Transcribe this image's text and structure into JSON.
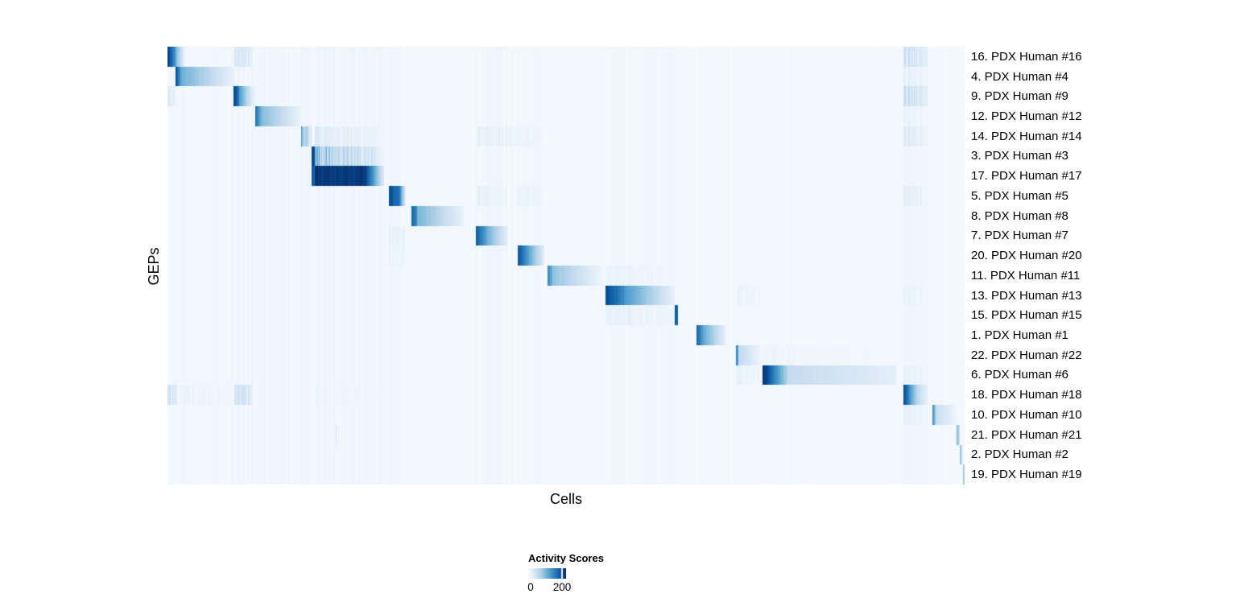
{
  "chart_data": {
    "type": "heatmap",
    "xlabel": "Cells",
    "ylabel": "GEPs",
    "colorbar": {
      "title": "Activity Scores",
      "tick_labels": [
        "0",
        "200"
      ],
      "tick_values": [
        0,
        200
      ],
      "value_range": [
        0,
        225
      ]
    },
    "colormap": {
      "name": "Blues",
      "stops": [
        "#f7fbff",
        "#deebf7",
        "#c6dbef",
        "#9ecae1",
        "#6baed6",
        "#4292c6",
        "#2171b5",
        "#08519c",
        "#08306b"
      ]
    },
    "base": 2,
    "base_noise": 5,
    "bands": [
      [
        0.0,
        0.014,
        9
      ],
      [
        0.014,
        0.084,
        10
      ],
      [
        0.084,
        0.108,
        13
      ],
      [
        0.11,
        0.168,
        10
      ],
      [
        0.168,
        0.181,
        12
      ],
      [
        0.185,
        0.272,
        12
      ],
      [
        0.278,
        0.298,
        12
      ],
      [
        0.306,
        0.372,
        8
      ],
      [
        0.387,
        0.427,
        12
      ],
      [
        0.439,
        0.473,
        10
      ],
      [
        0.477,
        0.545,
        8
      ],
      [
        0.549,
        0.636,
        10
      ],
      [
        0.664,
        0.7,
        6
      ],
      [
        0.713,
        0.743,
        8
      ],
      [
        0.746,
        0.914,
        6
      ],
      [
        0.923,
        0.954,
        13
      ],
      [
        0.96,
        0.99,
        6
      ]
    ],
    "rows": [
      {
        "label": "16. PDX Human #16",
        "segments": [
          [
            0.0,
            0.01,
            225,
            140,
            0
          ],
          [
            0.01,
            0.022,
            115,
            12,
            0
          ],
          [
            0.084,
            0.106,
            55,
            28,
            1
          ],
          [
            0.923,
            0.954,
            65,
            35,
            1
          ]
        ]
      },
      {
        "label": "4. PDX Human #4",
        "segments": [
          [
            0.01,
            0.016,
            215,
            140,
            0
          ],
          [
            0.016,
            0.084,
            120,
            16,
            0
          ],
          [
            0.923,
            0.954,
            28,
            16,
            1
          ]
        ]
      },
      {
        "label": "9. PDX Human #9",
        "segments": [
          [
            0.0,
            0.01,
            42,
            24,
            1
          ],
          [
            0.083,
            0.09,
            215,
            160,
            0
          ],
          [
            0.09,
            0.106,
            140,
            28,
            0
          ],
          [
            0.106,
            0.112,
            28,
            8,
            0
          ],
          [
            0.923,
            0.954,
            72,
            38,
            1
          ]
        ]
      },
      {
        "label": "12. PDX Human #12",
        "segments": [
          [
            0.11,
            0.117,
            185,
            120,
            0
          ],
          [
            0.117,
            0.168,
            105,
            14,
            0
          ],
          [
            0.923,
            0.954,
            22,
            12,
            1
          ]
        ]
      },
      {
        "label": "14. PDX Human #14",
        "segments": [
          [
            0.1677,
            0.1695,
            150,
            100,
            0
          ],
          [
            0.1695,
            0.181,
            95,
            50,
            1
          ],
          [
            0.185,
            0.272,
            38,
            14,
            1
          ],
          [
            0.387,
            0.473,
            26,
            12,
            1
          ],
          [
            0.923,
            0.954,
            42,
            20,
            1
          ]
        ]
      },
      {
        "label": "3. PDX Human #3",
        "segments": [
          [
            0.1805,
            0.185,
            225,
            200,
            0
          ],
          [
            0.185,
            0.258,
            120,
            45,
            1
          ],
          [
            0.258,
            0.272,
            45,
            14,
            1
          ]
        ]
      },
      {
        "label": "17. PDX Human #17",
        "segments": [
          [
            0.1805,
            0.185,
            205,
            185,
            0
          ],
          [
            0.185,
            0.248,
            225,
            222,
            0
          ],
          [
            0.248,
            0.2715,
            220,
            28,
            0
          ]
        ]
      },
      {
        "label": "5. PDX Human #5",
        "segments": [
          [
            0.278,
            0.2915,
            208,
            170,
            0
          ],
          [
            0.2915,
            0.299,
            150,
            22,
            0
          ],
          [
            0.387,
            0.427,
            26,
            14,
            1
          ],
          [
            0.439,
            0.473,
            22,
            12,
            1
          ],
          [
            0.923,
            0.954,
            32,
            16,
            1
          ]
        ]
      },
      {
        "label": "8. PDX Human #8",
        "segments": [
          [
            0.306,
            0.313,
            190,
            150,
            0
          ],
          [
            0.313,
            0.372,
            112,
            16,
            0
          ]
        ]
      },
      {
        "label": "7. PDX Human #7",
        "segments": [
          [
            0.278,
            0.298,
            28,
            15,
            1
          ],
          [
            0.387,
            0.4,
            198,
            130,
            0
          ],
          [
            0.4,
            0.427,
            122,
            22,
            0
          ]
        ]
      },
      {
        "label": "20. PDX Human #20",
        "segments": [
          [
            0.278,
            0.298,
            22,
            12,
            1
          ],
          [
            0.439,
            0.452,
            208,
            140,
            0
          ],
          [
            0.452,
            0.473,
            132,
            22,
            0
          ]
        ]
      },
      {
        "label": "11. PDX Human #11",
        "segments": [
          [
            0.477,
            0.483,
            160,
            110,
            0
          ],
          [
            0.483,
            0.545,
            96,
            10,
            0
          ],
          [
            0.549,
            0.636,
            20,
            10,
            1
          ]
        ]
      },
      {
        "label": "13. PDX Human #13",
        "segments": [
          [
            0.549,
            0.573,
            215,
            150,
            0
          ],
          [
            0.573,
            0.636,
            142,
            18,
            0
          ],
          [
            0.715,
            0.743,
            20,
            12,
            1
          ],
          [
            0.923,
            0.954,
            24,
            12,
            1
          ]
        ]
      },
      {
        "label": "15. PDX Human #15",
        "segments": [
          [
            0.549,
            0.636,
            25,
            12,
            1
          ],
          [
            0.6363,
            0.64,
            205,
            180,
            0
          ]
        ]
      },
      {
        "label": "1. PDX Human #1",
        "segments": [
          [
            0.664,
            0.672,
            192,
            130,
            0
          ],
          [
            0.672,
            0.7,
            122,
            22,
            0
          ]
        ]
      },
      {
        "label": "22. PDX Human #22",
        "segments": [
          [
            0.713,
            0.716,
            172,
            120,
            0
          ],
          [
            0.716,
            0.743,
            62,
            13,
            0
          ],
          [
            0.746,
            0.914,
            13,
            8,
            1
          ]
        ]
      },
      {
        "label": "6. PDX Human #6",
        "segments": [
          [
            0.713,
            0.743,
            24,
            12,
            1
          ],
          [
            0.746,
            0.753,
            225,
            215,
            0
          ],
          [
            0.753,
            0.778,
            205,
            70,
            0
          ],
          [
            0.778,
            0.914,
            58,
            22,
            0
          ],
          [
            0.923,
            0.954,
            26,
            14,
            1
          ]
        ]
      },
      {
        "label": "18. PDX Human #18",
        "segments": [
          [
            0.0,
            0.012,
            62,
            40,
            1
          ],
          [
            0.014,
            0.084,
            18,
            10,
            1
          ],
          [
            0.084,
            0.106,
            66,
            35,
            1
          ],
          [
            0.185,
            0.272,
            14,
            8,
            1
          ],
          [
            0.9235,
            0.929,
            215,
            170,
            0
          ],
          [
            0.929,
            0.94,
            162,
            70,
            0
          ],
          [
            0.94,
            0.954,
            66,
            16,
            0
          ]
        ]
      },
      {
        "label": "10. PDX Human #10",
        "segments": [
          [
            0.923,
            0.954,
            30,
            16,
            1
          ],
          [
            0.96,
            0.9635,
            150,
            90,
            0
          ],
          [
            0.9635,
            0.99,
            56,
            8,
            0
          ]
        ]
      },
      {
        "label": "21. PDX Human #21",
        "segments": [
          [
            0.211,
            0.2125,
            35,
            35,
            0
          ],
          [
            0.99,
            0.9935,
            112,
            60,
            0
          ]
        ]
      },
      {
        "label": "2. PDX Human #2",
        "segments": [
          [
            0.994,
            0.997,
            100,
            55,
            0
          ]
        ]
      },
      {
        "label": "19. PDX Human #19",
        "segments": [
          [
            0.9975,
            1.0,
            112,
            60,
            0
          ]
        ]
      }
    ]
  }
}
